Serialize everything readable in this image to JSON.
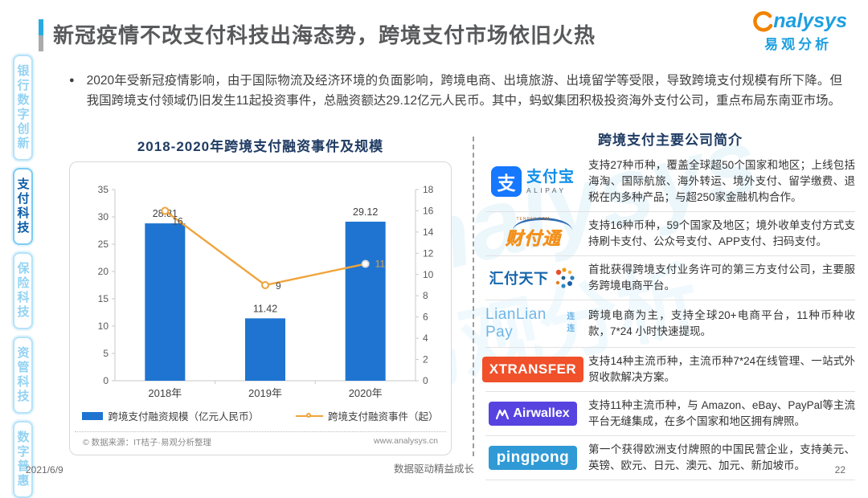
{
  "header": {
    "title": "新冠疫情不改支付科技出海态势，跨境支付市场依旧火热",
    "brand": {
      "latin": "nalysys",
      "cn": "易观分析"
    }
  },
  "sidebar": {
    "items": [
      {
        "label": "银行数字创新",
        "active": false
      },
      {
        "label": "支付科技",
        "active": true
      },
      {
        "label": "保险科技",
        "active": false
      },
      {
        "label": "资管科技",
        "active": false
      },
      {
        "label": "数字普惠",
        "active": false
      }
    ]
  },
  "summary": {
    "bullet": "●",
    "text": "2020年受新冠疫情影响，由于国际物流及经济环境的负面影响，跨境电商、出境旅游、出境留学等受限，导致跨境支付规模有所下降。但我国跨境支付领域仍旧发生11起投资事件，总融资额达29.12亿元人民币。其中，蚂蚁集团积极投资海外支付公司，重点布局东南亚市场。"
  },
  "chart": {
    "title": "2018-2020年跨境支付融资事件及规模",
    "source_left": "© 数据来源：IT桔子·易观分析整理",
    "source_right": "www.analysys.cn"
  },
  "chart_data": {
    "type": "bar",
    "title": "2018-2020年跨境支付融资事件及规模",
    "categories": [
      "2018年",
      "2019年",
      "2020年"
    ],
    "series": [
      {
        "name": "跨境支付融资规模（亿元人民币）",
        "kind": "bar",
        "axis": "left",
        "color": "#1e74d0",
        "values": [
          28.81,
          11.42,
          29.12
        ]
      },
      {
        "name": "跨境支付融资事件（起）",
        "kind": "line",
        "axis": "right",
        "color": "#f0a43c",
        "values": [
          16,
          9,
          11
        ]
      }
    ],
    "left_axis": {
      "min": 0,
      "max": 35,
      "step": 5
    },
    "right_axis": {
      "min": 0,
      "max": 18,
      "step": 2
    },
    "legend_position": "bottom",
    "grid": false
  },
  "companies": {
    "title": "跨境支付主要公司简介",
    "items": [
      {
        "name": "支付宝",
        "logo": {
          "type": "alipay",
          "icon_char": "支",
          "text": "支付宝",
          "sub": "ALIPAY"
        },
        "desc": "支持27种币种，覆盖全球超50个国家和地区；上线包括海淘、国际航旅、海外转运、境外支付、留学缴费、退税在内多种产品；与超250家金融机构合作。"
      },
      {
        "name": "财付通",
        "logo": {
          "type": "tenpay",
          "text": "财付通",
          "sub": "TENPAY.COM"
        },
        "desc": "支持16种币种，59个国家及地区；境外收单支付方式支持刷卡支付、公众号支付、APP支付、扫码支付。"
      },
      {
        "name": "汇付天下",
        "logo": {
          "type": "huifu",
          "text": "汇付天下"
        },
        "desc": "首批获得跨境支付业务许可的第三方支付公司，主要服务跨境电商平台。"
      },
      {
        "name": "连连支付",
        "logo": {
          "type": "lianlian",
          "text": "LianLian Pay",
          "sub": "连连"
        },
        "desc": "跨境电商为主，支持全球20+电商平台，11种币种收款，7*24 小时快速提现。"
      },
      {
        "name": "XTRANSFER",
        "logo": {
          "type": "xtransfer",
          "text": "XTRANSFER"
        },
        "desc": "支持14种主流币种，主流币种7*24在线管理、一站式外贸收款解决方案。"
      },
      {
        "name": "Airwallex",
        "logo": {
          "type": "airwallex",
          "text": "Airwallex"
        },
        "desc": "支持11种主流币种，与 Amazon、eBay、PayPal等主流平台无缝集成，在多个国家和地区拥有牌照。"
      },
      {
        "name": "PingPong",
        "logo": {
          "type": "pingpong",
          "text": "pingpong"
        },
        "desc": "第一个获得欧洲支付牌照的中国民营企业，支持美元、英镑、欧元、日元、澳元、加元、新加坡币。"
      }
    ]
  },
  "watermark": {
    "text_latin": "analysys",
    "text_cn": "易观分析"
  },
  "footer": {
    "date": "2021/6/9",
    "slogan": "数据驱动精益成长",
    "page": "22"
  }
}
